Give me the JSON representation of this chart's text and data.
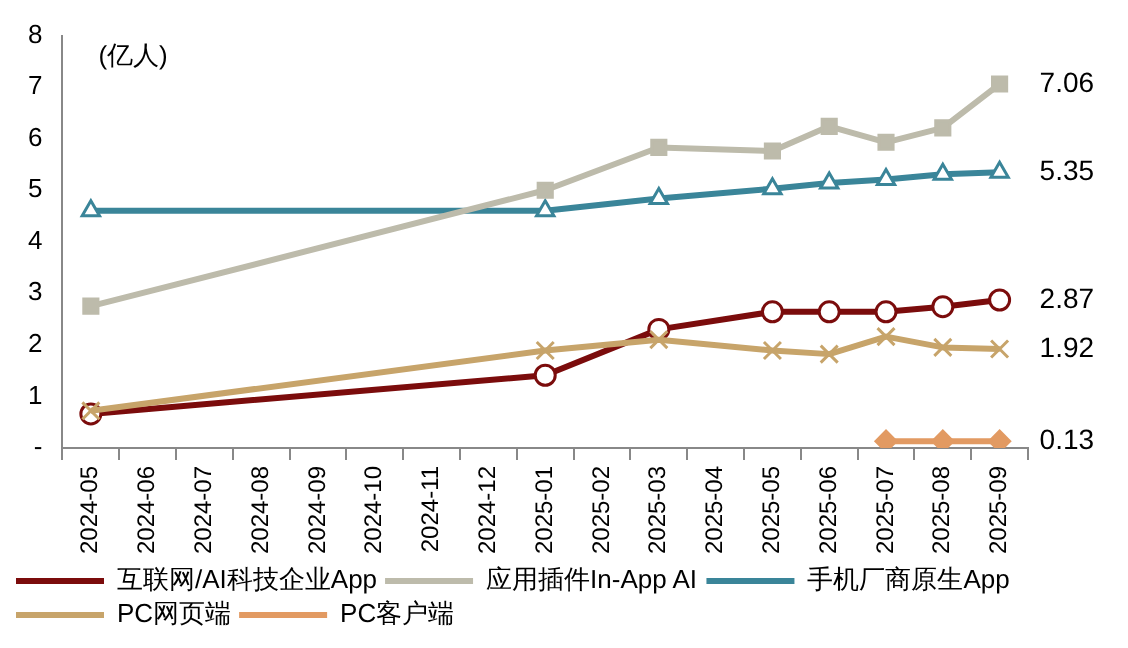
{
  "chart_data": {
    "type": "line",
    "ylabel": "(亿人)",
    "categories": [
      "2024-05",
      "2024-06",
      "2024-07",
      "2024-08",
      "2024-09",
      "2024-10",
      "2024-11",
      "2024-12",
      "2025-01",
      "2025-02",
      "2025-03",
      "2025-04",
      "2025-05",
      "2025-06",
      "2025-07",
      "2025-08",
      "2025-09"
    ],
    "ylim": [
      0,
      8
    ],
    "yticks": [
      {
        "value": 0,
        "label": "-"
      },
      1,
      2,
      3,
      4,
      5,
      6,
      7,
      8
    ],
    "grid": false,
    "legend": "bottom",
    "series": [
      {
        "name": "互联网/AI科技企业App",
        "color": "#7b0c0c",
        "marker": "circle",
        "values": [
          0.66,
          null,
          null,
          null,
          null,
          null,
          null,
          null,
          1.41,
          null,
          2.3,
          null,
          2.64,
          2.64,
          2.64,
          2.74,
          2.87
        ],
        "value_labels": [
          null,
          null,
          null,
          null,
          null,
          null,
          null,
          null,
          null,
          null,
          null,
          null,
          null,
          null,
          null,
          null,
          "2.87"
        ]
      },
      {
        "name": "应用插件In-App AI",
        "color": "#bdbbab",
        "marker": "square",
        "values": [
          2.75,
          null,
          null,
          null,
          null,
          null,
          null,
          null,
          5.0,
          null,
          5.83,
          null,
          5.76,
          6.24,
          5.93,
          6.21,
          7.06
        ],
        "value_labels": [
          null,
          null,
          null,
          null,
          null,
          null,
          null,
          null,
          null,
          null,
          null,
          null,
          null,
          null,
          null,
          null,
          "7.06"
        ]
      },
      {
        "name": "手机厂商原生App",
        "color": "#3a8599",
        "marker": "triangle",
        "values": [
          4.6,
          null,
          null,
          null,
          null,
          null,
          null,
          null,
          4.6,
          null,
          4.84,
          null,
          5.03,
          5.14,
          5.21,
          5.31,
          5.35
        ],
        "value_labels": [
          null,
          null,
          null,
          null,
          null,
          null,
          null,
          null,
          null,
          null,
          null,
          null,
          null,
          null,
          null,
          null,
          "5.35"
        ]
      },
      {
        "name": "PC网页端",
        "color": "#c7a46a",
        "marker": "cross",
        "values": [
          0.72,
          null,
          null,
          null,
          null,
          null,
          null,
          null,
          1.89,
          null,
          2.1,
          null,
          1.89,
          1.82,
          2.16,
          1.95,
          1.92
        ],
        "value_labels": [
          null,
          null,
          null,
          null,
          null,
          null,
          null,
          null,
          null,
          null,
          null,
          null,
          null,
          null,
          null,
          null,
          "1.92"
        ]
      },
      {
        "name": "PC客户端",
        "color": "#e29a62",
        "marker": "diamond",
        "values": [
          null,
          null,
          null,
          null,
          null,
          null,
          null,
          null,
          null,
          null,
          null,
          null,
          null,
          null,
          0.13,
          0.13,
          0.13
        ],
        "value_labels": [
          null,
          null,
          null,
          null,
          null,
          null,
          null,
          null,
          null,
          null,
          null,
          null,
          null,
          null,
          null,
          null,
          "0.13"
        ]
      }
    ]
  }
}
